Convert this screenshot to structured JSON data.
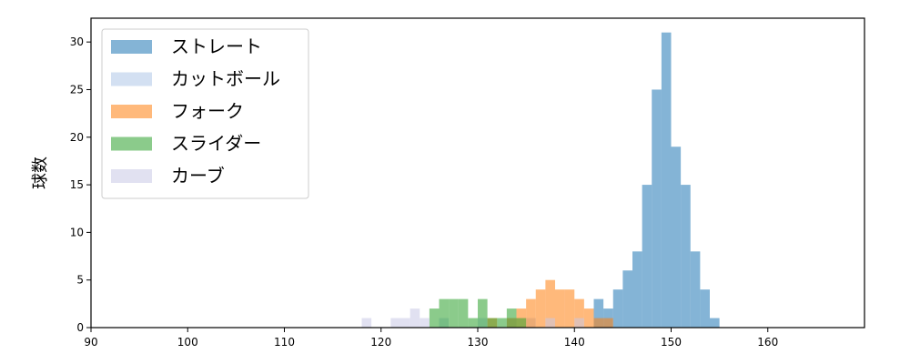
{
  "chart_data": {
    "type": "bar",
    "title": "",
    "xlabel": "",
    "ylabel": "球数",
    "xlim": [
      90,
      170
    ],
    "ylim": [
      0,
      32.5
    ],
    "xticks": [
      90,
      100,
      110,
      120,
      130,
      140,
      150,
      160
    ],
    "yticks": [
      0,
      5,
      10,
      15,
      20,
      25,
      30
    ],
    "grid": false,
    "legend_position": "top-left",
    "bin_width": 1,
    "series": [
      {
        "name": "ストレート",
        "color": "#1f77b4",
        "bins": [
          [
            142,
            3
          ],
          [
            143,
            2
          ],
          [
            144,
            4
          ],
          [
            145,
            6
          ],
          [
            146,
            8
          ],
          [
            147,
            15
          ],
          [
            148,
            25
          ],
          [
            149,
            31
          ],
          [
            150,
            19
          ],
          [
            151,
            15
          ],
          [
            152,
            8
          ],
          [
            153,
            4
          ],
          [
            154,
            1
          ]
        ]
      },
      {
        "name": "カットボール",
        "color": "#aec7e8",
        "bins": [
          [
            126,
            1
          ],
          [
            130,
            1
          ],
          [
            133,
            1
          ],
          [
            135,
            1
          ]
        ]
      },
      {
        "name": "フォーク",
        "color": "#ff7f0e",
        "bins": [
          [
            131,
            1
          ],
          [
            133,
            1
          ],
          [
            134,
            2
          ],
          [
            135,
            3
          ],
          [
            136,
            4
          ],
          [
            137,
            5
          ],
          [
            138,
            4
          ],
          [
            139,
            4
          ],
          [
            140,
            3
          ],
          [
            141,
            2
          ],
          [
            142,
            1
          ],
          [
            143,
            1
          ]
        ]
      },
      {
        "name": "スライダー",
        "color": "#2ca02c",
        "bins": [
          [
            125,
            2
          ],
          [
            126,
            3
          ],
          [
            127,
            3
          ],
          [
            128,
            3
          ],
          [
            129,
            1
          ],
          [
            130,
            3
          ],
          [
            131,
            1
          ],
          [
            132,
            1
          ],
          [
            133,
            2
          ],
          [
            134,
            1
          ]
        ]
      },
      {
        "name": "カーブ",
        "color": "#c8c8e6",
        "bins": [
          [
            118,
            1
          ],
          [
            121,
            1
          ],
          [
            122,
            1
          ],
          [
            123,
            2
          ],
          [
            124,
            1
          ],
          [
            137,
            1
          ],
          [
            140,
            1
          ]
        ]
      }
    ]
  }
}
